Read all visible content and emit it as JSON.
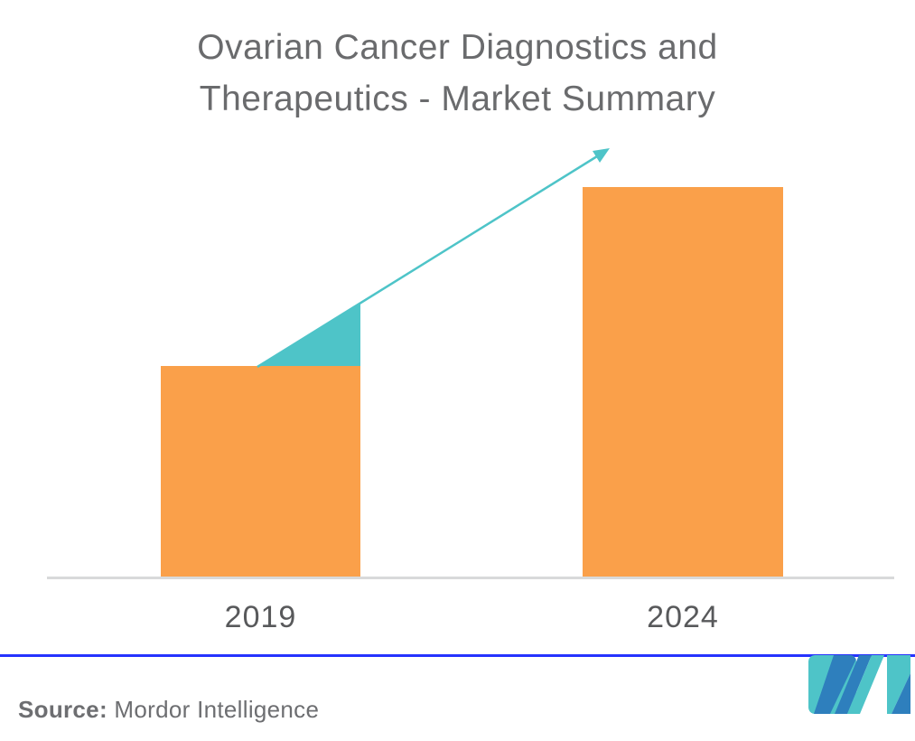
{
  "title": {
    "line1": "Ovarian Cancer Diagnostics and",
    "line2": "Therapeutics - Market Summary"
  },
  "chart_data": {
    "type": "bar",
    "categories": [
      "2019",
      "2024"
    ],
    "values": [
      54,
      100
    ],
    "value_units": "relative height (no numeric axis shown in chart)",
    "title": "Ovarian Cancer Diagnostics and Therapeutics - Market Summary",
    "xlabel": "",
    "ylabel": "",
    "grid": false,
    "legend": false,
    "bar_color": "#FAA04A",
    "annotations": [
      "teal growth arrow rising from top of 2019 bar to above 2024 bar"
    ]
  },
  "x_axis": {
    "tick_2019": "2019",
    "tick_2024": "2024"
  },
  "source": {
    "label": "Source:",
    "name": " Mordor Intelligence"
  },
  "icons": {
    "logo": "mordor-intelligence-mi-logo",
    "arrow": "growth-arrow"
  },
  "colors": {
    "bar_orange": "#FAA04A",
    "arrow_teal": "#4EC4C8",
    "axis_gray": "#D8D9DA",
    "divider_blue": "#2633FE",
    "title_gray": "#6A6B6D",
    "label_gray": "#58595B",
    "source_gray": "#6D6E71",
    "logo_teal": "#4EC4C8",
    "logo_blue": "#2E7FBD"
  }
}
